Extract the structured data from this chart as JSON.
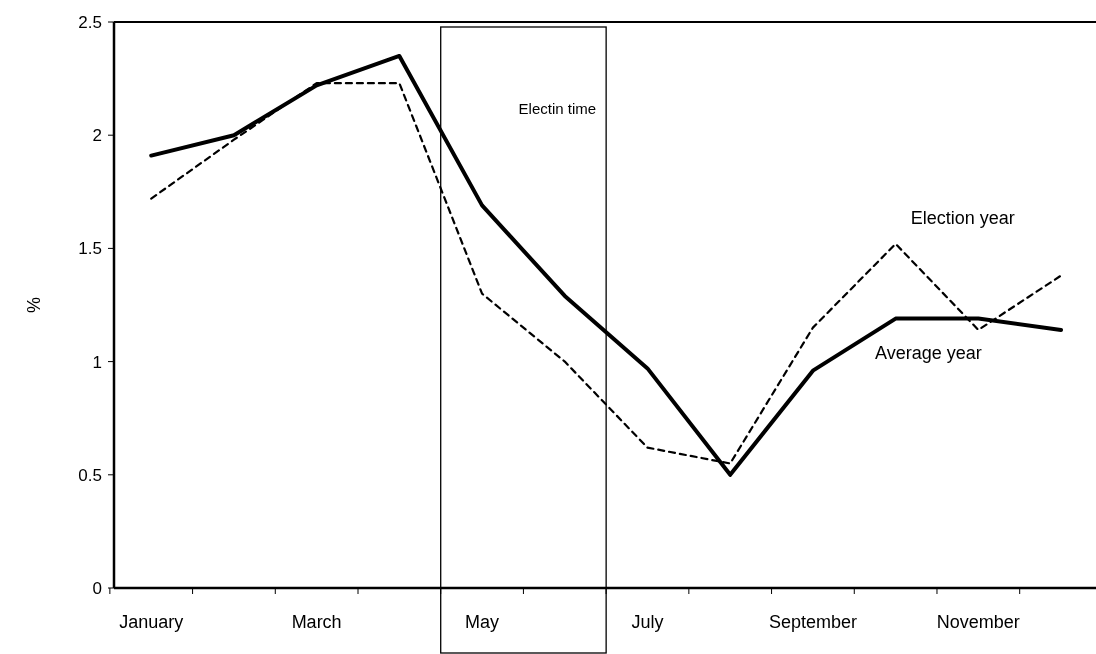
{
  "chart_data": {
    "type": "line",
    "categories": [
      "January",
      null,
      "March",
      null,
      "May",
      null,
      "July",
      null,
      "September",
      null,
      "November",
      null
    ],
    "series": [
      {
        "name": "Average year",
        "color": "#000000",
        "line_style": "solid",
        "values": [
          1.91,
          2.0,
          2.22,
          2.35,
          1.69,
          1.29,
          0.97,
          0.5,
          0.96,
          1.19,
          1.19,
          1.14
        ]
      },
      {
        "name": "Election year",
        "color": "#000000",
        "line_style": "dashed",
        "values": [
          1.72,
          1.98,
          2.23,
          2.23,
          1.3,
          1.0,
          0.62,
          0.55,
          1.15,
          1.52,
          1.14,
          1.38
        ]
      }
    ],
    "ylabel": "%",
    "ylim": [
      0,
      2.5
    ],
    "yticks": [
      0,
      0.5,
      1,
      1.5,
      2,
      2.5
    ],
    "annotations": [
      "Electin time"
    ],
    "grid": false,
    "legend": false,
    "marker": "none"
  }
}
